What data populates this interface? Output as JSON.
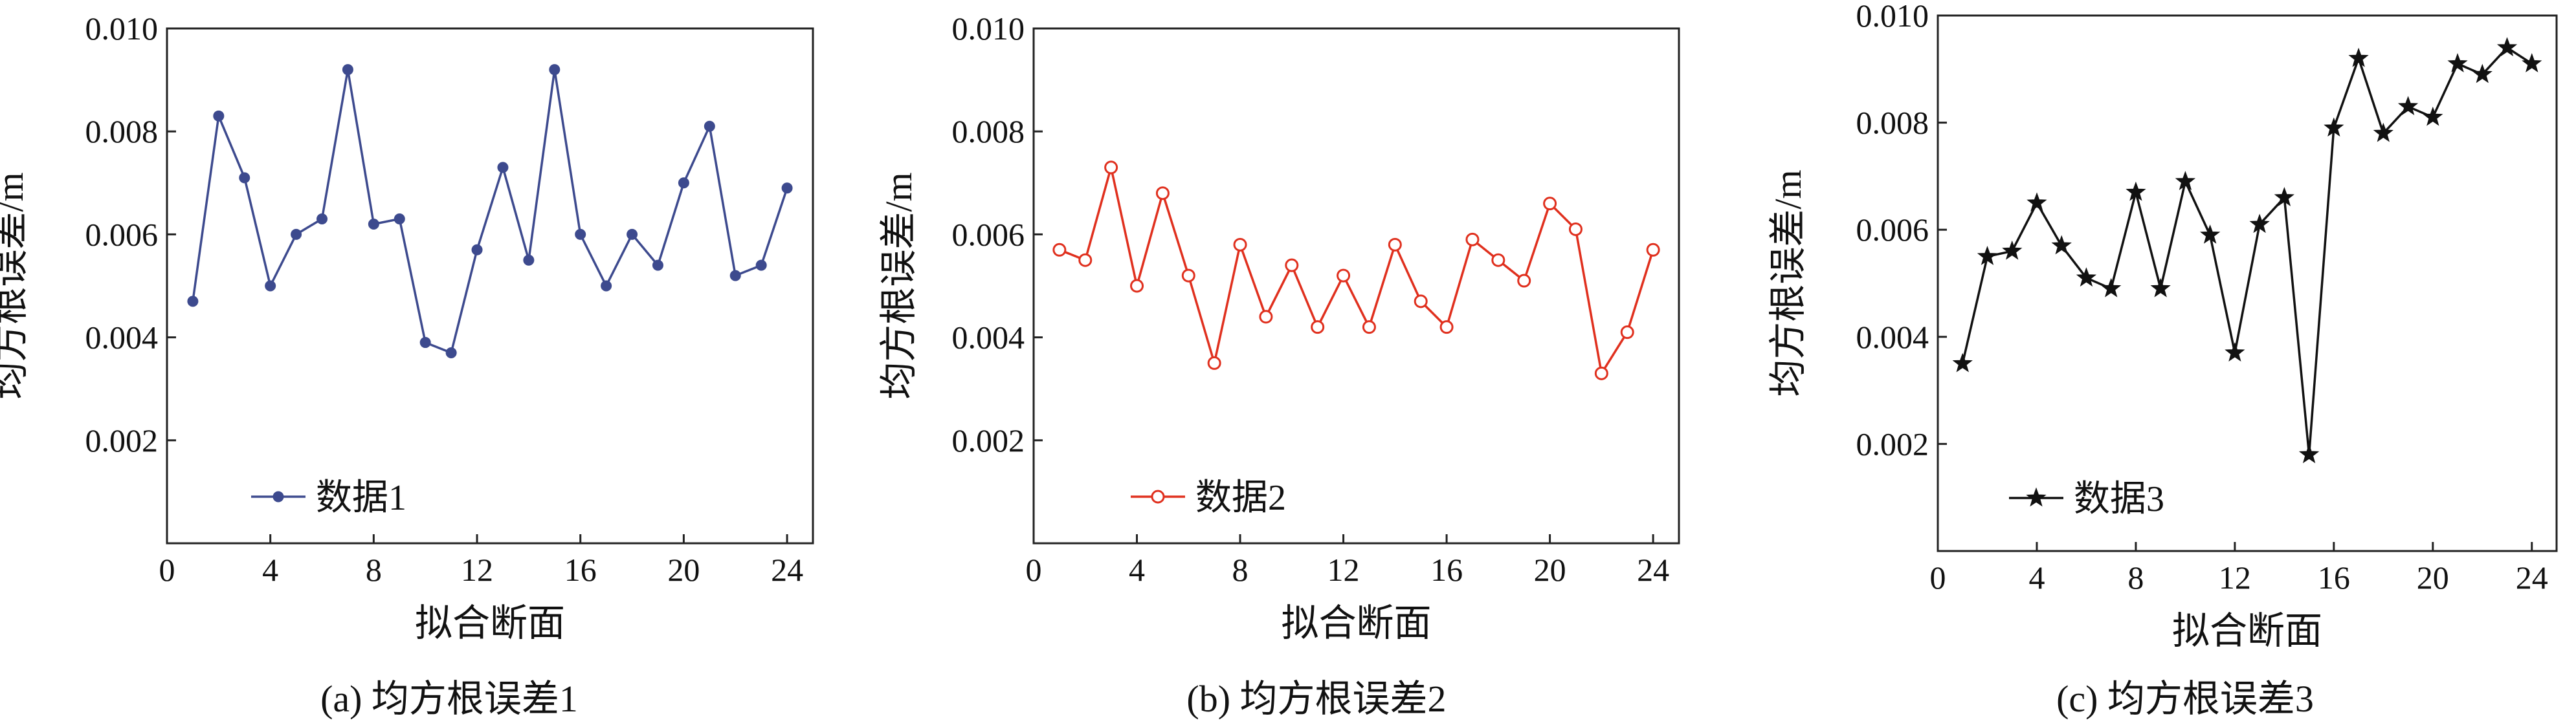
{
  "chart_data": [
    {
      "type": "line",
      "caption": "(a) 均方根误差1",
      "xlabel": "拟合断面",
      "ylabel": "均方根误差/m",
      "xlim": [
        0,
        25
      ],
      "ylim": [
        0,
        0.01
      ],
      "xticks": [
        0,
        4,
        8,
        12,
        16,
        20,
        24
      ],
      "xtick_labels": [
        "0",
        "4",
        "8",
        "12",
        "16",
        "20",
        "24"
      ],
      "yticks": [
        0.002,
        0.004,
        0.006,
        0.008,
        0.01
      ],
      "ytick_labels": [
        "0.002",
        "0.004",
        "0.006",
        "0.008",
        "0.010"
      ],
      "grid": false,
      "legend_position": "bottom-left",
      "series": [
        {
          "name": "数据1",
          "color": "#3d4a8e",
          "marker": "dot",
          "x": [
            1,
            2,
            3,
            4,
            5,
            6,
            7,
            8,
            9,
            10,
            11,
            12,
            13,
            14,
            15,
            16,
            17,
            18,
            19,
            20,
            21,
            22,
            23,
            24
          ],
          "values": [
            0.0047,
            0.0083,
            0.0071,
            0.005,
            0.006,
            0.0063,
            0.0092,
            0.0062,
            0.0063,
            0.0039,
            0.0037,
            0.0057,
            0.0073,
            0.0055,
            0.0092,
            0.006,
            0.005,
            0.006,
            0.0054,
            0.007,
            0.0081,
            0.0052,
            0.0054,
            0.0069
          ]
        }
      ]
    },
    {
      "type": "line",
      "caption": "(b) 均方根误差2",
      "xlabel": "拟合断面",
      "ylabel": "均方根误差/m",
      "xlim": [
        0,
        25
      ],
      "ylim": [
        0,
        0.01
      ],
      "xticks": [
        0,
        4,
        8,
        12,
        16,
        20,
        24
      ],
      "xtick_labels": [
        "0",
        "4",
        "8",
        "12",
        "16",
        "20",
        "24"
      ],
      "yticks": [
        0.002,
        0.004,
        0.006,
        0.008,
        0.01
      ],
      "ytick_labels": [
        "0.002",
        "0.004",
        "0.006",
        "0.008",
        "0.010"
      ],
      "grid": false,
      "legend_position": "bottom-left",
      "series": [
        {
          "name": "数据2",
          "color": "#e0301e",
          "marker": "circle",
          "x": [
            1,
            2,
            3,
            4,
            5,
            6,
            7,
            8,
            9,
            10,
            11,
            12,
            13,
            14,
            15,
            16,
            17,
            18,
            19,
            20,
            21,
            22,
            23,
            24
          ],
          "values": [
            0.0057,
            0.0055,
            0.0073,
            0.005,
            0.0068,
            0.0052,
            0.0035,
            0.0058,
            0.0044,
            0.0054,
            0.0042,
            0.0052,
            0.0042,
            0.0058,
            0.0047,
            0.0042,
            0.0059,
            0.0055,
            0.0051,
            0.0066,
            0.0061,
            0.0033,
            0.0041,
            0.0057
          ]
        }
      ]
    },
    {
      "type": "line",
      "caption": "(c) 均方根误差3",
      "xlabel": "拟合断面",
      "ylabel": "均方根误差/m",
      "xlim": [
        0,
        25
      ],
      "ylim": [
        0,
        0.01
      ],
      "xticks": [
        0,
        4,
        8,
        12,
        16,
        20,
        24
      ],
      "xtick_labels": [
        "0",
        "4",
        "8",
        "12",
        "16",
        "20",
        "24"
      ],
      "yticks": [
        0.002,
        0.004,
        0.006,
        0.008,
        0.01
      ],
      "ytick_labels": [
        "0.002",
        "0.004",
        "0.006",
        "0.008",
        "0.010"
      ],
      "grid": false,
      "legend_position": "bottom-left",
      "series": [
        {
          "name": "数据3",
          "color": "#111111",
          "marker": "star",
          "x": [
            1,
            2,
            3,
            4,
            5,
            6,
            7,
            8,
            9,
            10,
            11,
            12,
            13,
            14,
            15,
            16,
            17,
            18,
            19,
            20,
            21,
            22,
            23,
            24
          ],
          "values": [
            0.0035,
            0.0055,
            0.0056,
            0.0065,
            0.0057,
            0.0051,
            0.0049,
            0.0067,
            0.0049,
            0.0069,
            0.0059,
            0.0037,
            0.0061,
            0.0066,
            0.0018,
            0.0079,
            0.0092,
            0.0078,
            0.0083,
            0.0081,
            0.0091,
            0.0089,
            0.0094,
            0.0091
          ]
        }
      ]
    }
  ]
}
